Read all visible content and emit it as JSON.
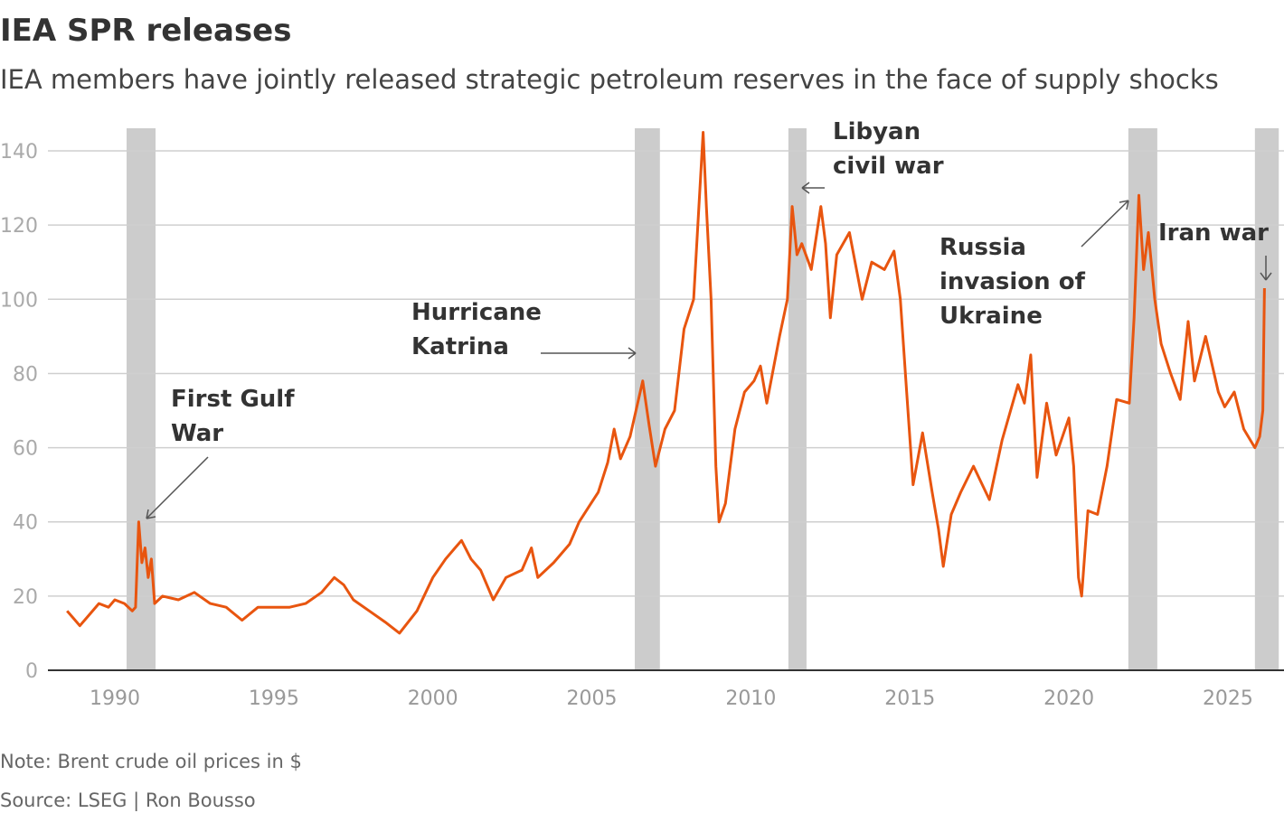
{
  "title": "IEA SPR releases",
  "subtitle": "IEA members have jointly released strategic petroleum reserves in the face of supply shocks",
  "note": "Note: Brent crude oil prices in $",
  "source": "Source: LSEG | Ron Bousso",
  "chart_data": {
    "type": "line",
    "title": "IEA SPR releases",
    "xlabel": "",
    "ylabel": "",
    "xlim": [
      1988,
      2026.6
    ],
    "ylim": [
      0,
      145
    ],
    "grid": true,
    "yticks": [
      0,
      20,
      40,
      60,
      80,
      100,
      120,
      140
    ],
    "xticks": [
      1990,
      1995,
      2000,
      2005,
      2010,
      2015,
      2020,
      2025
    ],
    "colors": {
      "line": "#e8550f",
      "band": "#cccccc",
      "text": "#333333"
    },
    "release_periods": [
      [
        1990.37,
        1991.28
      ],
      [
        2006.35,
        2007.14
      ],
      [
        2011.18,
        2011.75
      ],
      [
        2021.87,
        2022.78
      ],
      [
        2025.85,
        2026.6
      ]
    ],
    "annotations": [
      {
        "lines": [
          "First Gulf",
          "War"
        ]
      },
      {
        "lines": [
          "Hurricane",
          "Katrina"
        ]
      },
      {
        "lines": [
          "Libyan",
          "civil war"
        ]
      },
      {
        "lines": [
          "Russia",
          "invasion of",
          "Ukraine"
        ]
      },
      {
        "lines": [
          "Iran war"
        ]
      }
    ],
    "series": [
      {
        "x": [
          1988.5,
          1988.7,
          1988.9,
          1989.2,
          1989.5,
          1989.8,
          1990.0,
          1990.3,
          1990.55,
          1990.65,
          1990.75,
          1990.85,
          1990.95,
          1991.05,
          1991.15,
          1991.25,
          1991.5,
          1992.0,
          1992.5,
          1993.0,
          1993.5,
          1994.0,
          1994.5,
          1995.0,
          1995.5,
          1996.0,
          1996.5,
          1996.9,
          1997.2,
          1997.5,
          1998.0,
          1998.5,
          1998.95,
          1999.5,
          2000.0,
          2000.4,
          2000.7,
          2000.9,
          2001.2,
          2001.5,
          2001.9,
          2002.3,
          2002.8,
          2003.1,
          2003.3,
          2003.8,
          2004.3,
          2004.6,
          2004.9,
          2005.2,
          2005.5,
          2005.7,
          2005.9,
          2006.2,
          2006.6,
          2006.8,
          2007.0,
          2007.3,
          2007.6,
          2007.9,
          2008.2,
          2008.4,
          2008.5,
          2008.6,
          2008.75,
          2008.9,
          2009.0,
          2009.2,
          2009.5,
          2009.8,
          2010.1,
          2010.3,
          2010.5,
          2010.9,
          2011.15,
          2011.3,
          2011.45,
          2011.6,
          2011.9,
          2012.2,
          2012.35,
          2012.5,
          2012.7,
          2013.1,
          2013.5,
          2013.8,
          2014.2,
          2014.5,
          2014.7,
          2014.9,
          2015.1,
          2015.4,
          2015.7,
          2015.9,
          2016.05,
          2016.3,
          2016.6,
          2017.0,
          2017.5,
          2017.9,
          2018.4,
          2018.6,
          2018.8,
          2019.0,
          2019.3,
          2019.6,
          2020.0,
          2020.15,
          2020.3,
          2020.4,
          2020.6,
          2020.9,
          2021.2,
          2021.5,
          2021.9,
          2022.05,
          2022.2,
          2022.35,
          2022.5,
          2022.7,
          2022.9,
          2023.2,
          2023.5,
          2023.75,
          2023.95,
          2024.3,
          2024.7,
          2024.9,
          2025.2,
          2025.5,
          2025.85,
          2026.0,
          2026.1,
          2026.15
        ],
        "values": [
          16,
          14,
          12,
          15,
          18,
          17,
          19,
          18,
          16,
          17,
          40,
          29,
          33,
          25,
          30,
          18,
          20,
          19,
          21,
          18,
          17,
          13.5,
          17,
          17,
          17,
          18,
          21,
          25,
          23,
          19,
          16,
          13,
          10,
          16,
          25,
          30,
          33,
          35,
          30,
          27,
          19,
          25,
          27,
          33,
          25,
          29,
          34,
          40,
          44,
          48,
          56,
          65,
          57,
          63,
          78,
          66,
          55,
          65,
          70,
          92,
          100,
          130,
          145,
          125,
          100,
          55,
          40,
          45,
          65,
          75,
          78,
          82,
          72,
          90,
          100,
          125,
          112,
          115,
          108,
          125,
          115,
          95,
          112,
          118,
          100,
          110,
          108,
          113,
          100,
          75,
          50,
          64,
          48,
          38,
          28,
          42,
          48,
          55,
          46,
          62,
          77,
          72,
          85,
          52,
          72,
          58,
          68,
          55,
          25,
          20,
          43,
          42,
          55,
          73,
          72,
          95,
          128,
          108,
          118,
          100,
          88,
          80,
          73,
          94,
          78,
          90,
          75,
          71,
          75,
          65,
          60,
          63,
          70,
          103
        ]
      }
    ]
  }
}
